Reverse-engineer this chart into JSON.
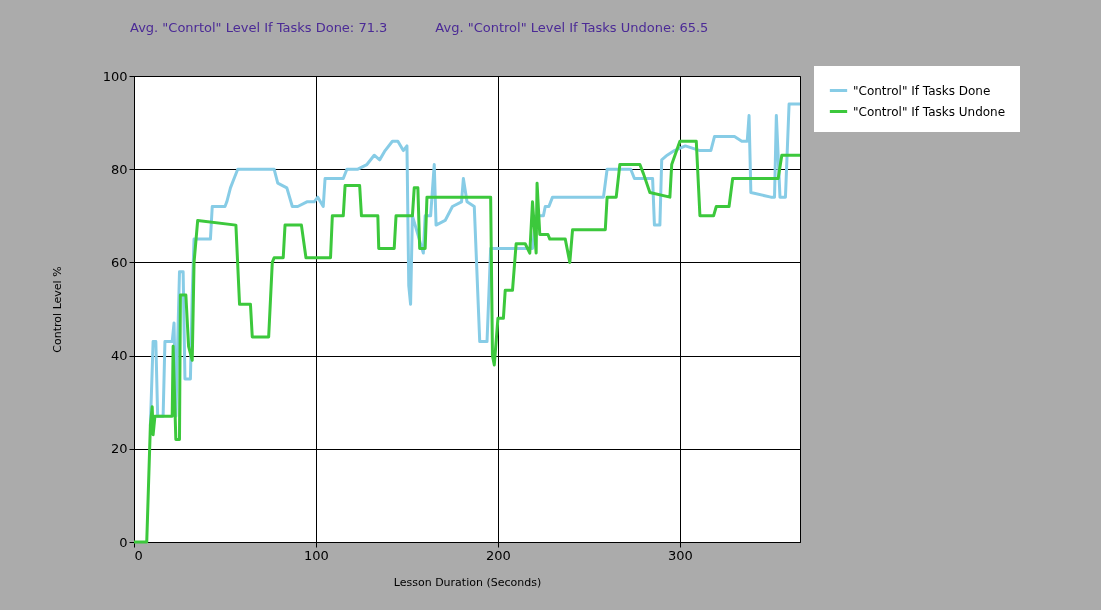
{
  "chart_data": {
    "type": "line",
    "xlabel": "Lesson Duration (Seconds)",
    "ylabel": "Control Level %",
    "annotations": [
      "Avg. \"Conrtol\" Level If Tasks Done: 71.3",
      "Avg. \"Control\" Level If Tasks Undone: 65.5"
    ],
    "xlim": [
      0,
      366
    ],
    "xticks": [
      0,
      100,
      200,
      300
    ],
    "ylim": [
      0,
      100
    ],
    "yticks": [
      0,
      20,
      40,
      60,
      80,
      100
    ],
    "grid": true,
    "legend": "top right",
    "marker": "none",
    "line_style": "solid",
    "series": [
      {
        "name": "\"Control\" If Tasks Done",
        "color": "#87cce6",
        "x": [
          9,
          10.5,
          12,
          13,
          16,
          17,
          21,
          22,
          23,
          25,
          27,
          28,
          31,
          32,
          33,
          42,
          43,
          50,
          51,
          53,
          55,
          57,
          70,
          77,
          79,
          84,
          87,
          90,
          95,
          99,
          101,
          104,
          105,
          115,
          117,
          123,
          128,
          132,
          135,
          138,
          142,
          145,
          148,
          150,
          151,
          152,
          153,
          159,
          160,
          163,
          165,
          166,
          171,
          175,
          180,
          181,
          183,
          187,
          190,
          194,
          196,
          210,
          219,
          221,
          225,
          226,
          228,
          230,
          250,
          258,
          260,
          273,
          275,
          285,
          286,
          289,
          290,
          293,
          297,
          303,
          311,
          317,
          319,
          330,
          334,
          337,
          338,
          339,
          350,
          352,
          353,
          355,
          358,
          360,
          366
        ],
        "values": [
          25,
          43,
          43,
          27,
          27,
          43,
          43,
          47,
          27,
          58,
          58,
          35,
          35,
          53,
          65,
          65,
          72,
          72,
          73,
          76,
          78,
          80,
          80,
          80,
          77,
          76,
          72,
          72,
          73,
          73,
          74,
          72,
          78,
          78,
          80,
          80,
          81,
          83,
          82,
          84,
          86,
          86,
          84,
          85,
          55,
          51,
          70,
          62,
          70,
          70,
          81,
          68,
          69,
          72,
          73,
          78,
          73,
          72,
          43,
          43,
          63,
          63,
          63,
          70,
          70,
          72,
          72,
          74,
          74,
          74,
          80,
          80,
          78,
          78,
          68,
          68,
          82,
          83,
          84,
          85,
          84,
          84,
          87,
          87,
          86,
          86,
          91.5,
          75,
          74,
          74,
          91.5,
          74,
          74,
          94,
          94
        ]
      },
      {
        "name": "\"Control\" If Tasks Undone",
        "color": "#3cc83c",
        "x": [
          0,
          7,
          9,
          10,
          10.5,
          11.5,
          21,
          21.5,
          23,
          25,
          25.5,
          28.5,
          30,
          32,
          33,
          35,
          56,
          58,
          64,
          65,
          74,
          76,
          77,
          82,
          83,
          92,
          94.5,
          108,
          109,
          115,
          116,
          124,
          125,
          134,
          134.5,
          143,
          144,
          153,
          154,
          156,
          157,
          160,
          161,
          196,
          197,
          198,
          200,
          203,
          204,
          208,
          210,
          215,
          217.5,
          219,
          221,
          221.5,
          223,
          227.5,
          228.5,
          237,
          239.5,
          241,
          259,
          260,
          265,
          267,
          278,
          280,
          283.5,
          294.5,
          295.5,
          300,
          309,
          311,
          318.5,
          320,
          327,
          329,
          354,
          356,
          366
        ],
        "values": [
          0,
          0,
          25,
          29,
          23,
          27,
          27,
          42,
          22,
          22,
          53,
          53,
          42,
          39,
          60,
          69,
          68,
          51,
          51,
          44,
          44,
          60,
          61,
          61,
          68,
          68,
          61,
          61,
          70,
          70,
          76.5,
          76.5,
          70,
          70,
          63,
          63,
          70,
          70,
          76,
          76,
          63,
          63,
          74,
          74,
          40,
          38,
          48,
          48,
          54,
          54,
          64,
          64,
          62,
          73,
          62,
          77,
          66,
          66,
          65,
          65,
          60,
          67,
          67,
          74,
          74,
          81,
          81,
          79,
          75,
          74,
          81,
          86,
          86,
          70,
          70,
          72,
          72,
          78,
          78,
          83,
          83
        ]
      }
    ]
  }
}
